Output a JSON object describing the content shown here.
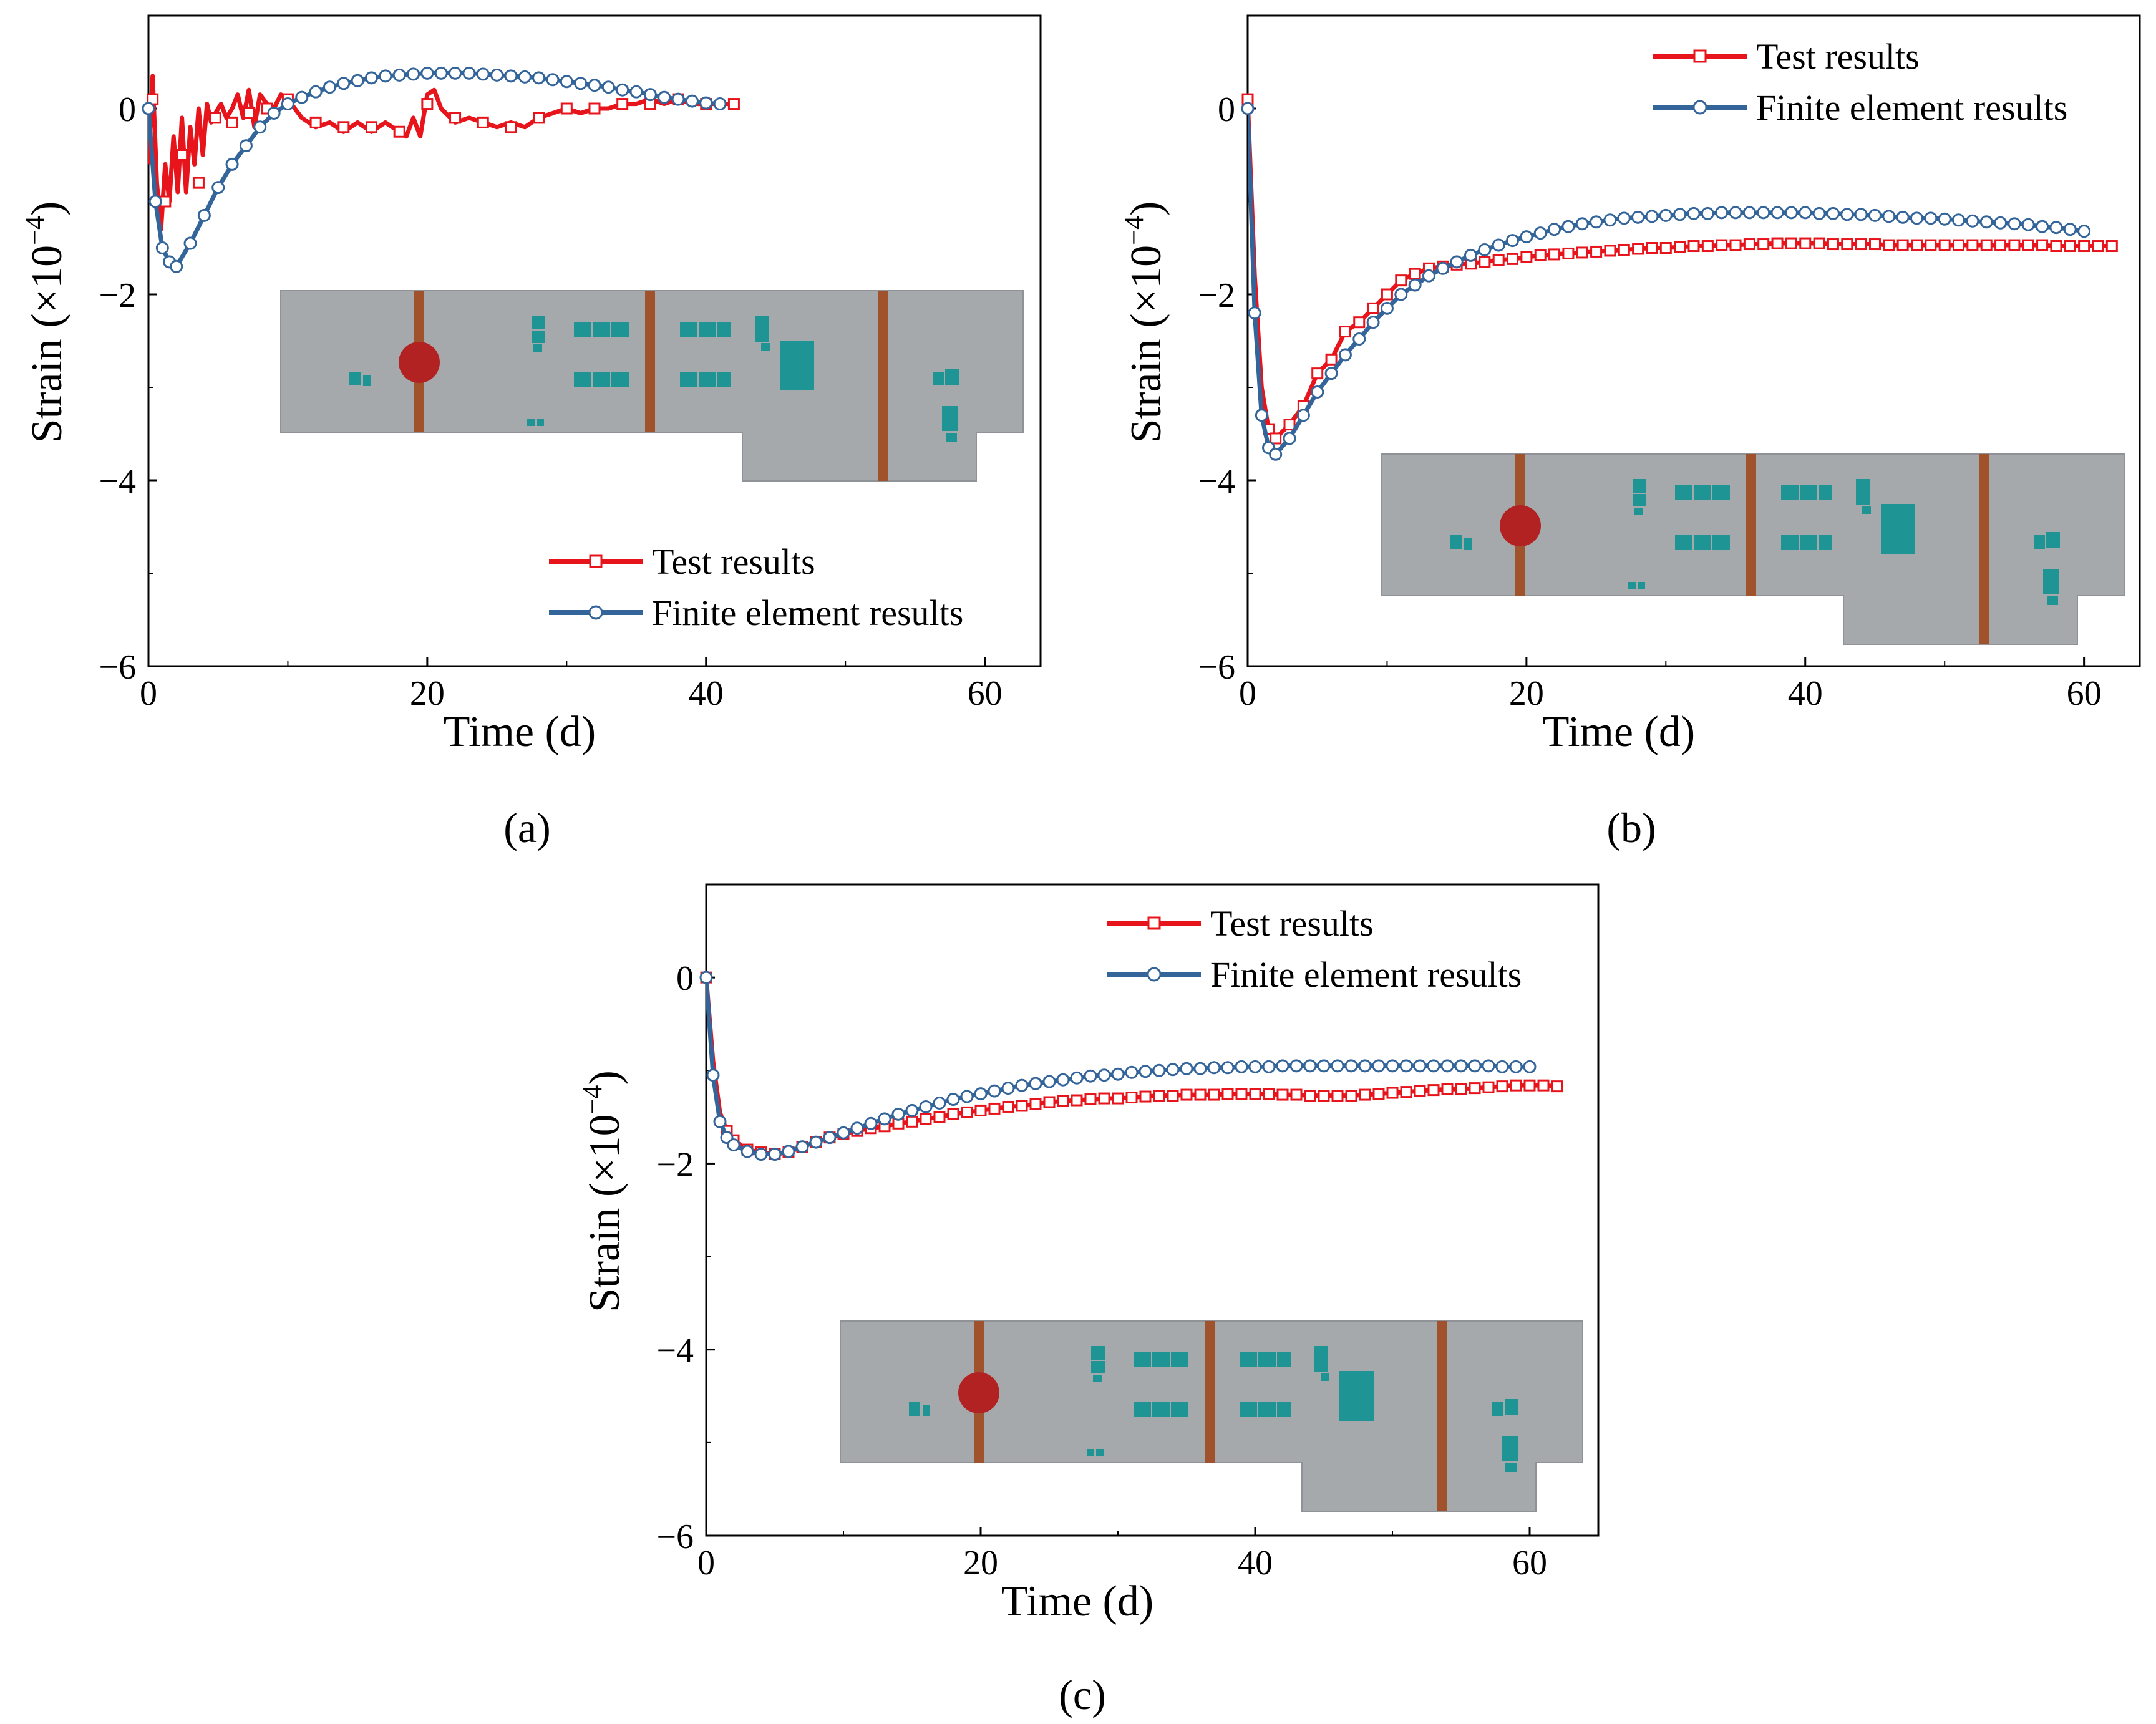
{
  "panel_labels": [
    "(a)",
    "(b)",
    "(c)"
  ],
  "colors": {
    "test": "#e8141c",
    "fe": "#33649a",
    "slab": "#a6a9ac",
    "rebar": "#a0522d",
    "marker": "#b22222",
    "block": "#1e9494"
  },
  "chart_data": [
    {
      "type": "line",
      "panel": "(a)",
      "xlabel": "Time (d)",
      "ylabel": "Strain (×10",
      "ylabel_exp": "−4",
      "ylabel_close": ")",
      "xlim": [
        0,
        64
      ],
      "ylim": [
        -6,
        1
      ],
      "xticks": [
        0,
        20,
        40,
        60
      ],
      "xtick_labels": [
        "0",
        "20",
        "40",
        "60"
      ],
      "yticks": [
        0,
        -2,
        -4,
        -6
      ],
      "ytick_labels": [
        "0",
        "−2",
        "−4",
        "−6"
      ],
      "legend_position": "bottom-right",
      "inset_position": "middle-right",
      "series": [
        {
          "name": "Test results",
          "marker": "square",
          "x": [
            0,
            0.3,
            0.6,
            0.9,
            1.2,
            1.5,
            1.8,
            2.1,
            2.4,
            2.7,
            3.0,
            3.3,
            3.6,
            3.9,
            4.2,
            4.5,
            4.8,
            5.2,
            5.6,
            6.0,
            6.4,
            6.8,
            7.2,
            7.6,
            8.0,
            8.5,
            9,
            9.5,
            10,
            11,
            12,
            13,
            14,
            15,
            16,
            17,
            18,
            18.5,
            19,
            19.5,
            20,
            20.5,
            21,
            22,
            23,
            24,
            25,
            26,
            27,
            28,
            29,
            30,
            31,
            32,
            33,
            34,
            35,
            36,
            37,
            38,
            39,
            40,
            41,
            42
          ],
          "y": [
            -0.6,
            0.35,
            -0.8,
            -1.3,
            -0.6,
            -1.0,
            -0.3,
            -0.9,
            -0.1,
            -0.9,
            -0.2,
            -0.6,
            0.0,
            -0.5,
            0.05,
            -0.15,
            -0.05,
            0.05,
            -0.1,
            -0.0,
            0.15,
            -0.1,
            0.2,
            -0.2,
            0.15,
            0.05,
            0.0,
            0.15,
            0.1,
            -0.1,
            -0.2,
            -0.15,
            -0.25,
            -0.15,
            -0.25,
            -0.15,
            -0.25,
            -0.3,
            -0.1,
            -0.3,
            0.15,
            0.2,
            0.0,
            -0.15,
            -0.1,
            -0.15,
            -0.2,
            -0.15,
            -0.2,
            -0.1,
            -0.05,
            0.0,
            -0.05,
            0.0,
            0.0,
            0.05,
            0.05,
            0.1,
            0.05,
            0.1,
            0.05,
            0.05,
            0.05,
            0.05
          ],
          "marker_x": [
            0.3,
            1.2,
            2.4,
            3.6,
            4.8,
            6.0,
            7.2,
            8.5,
            10,
            12,
            14,
            16,
            18,
            20,
            22,
            24,
            26,
            28,
            30,
            32,
            34,
            36,
            38,
            40,
            42
          ],
          "marker_y": [
            0.1,
            -1.0,
            -0.5,
            -0.8,
            -0.1,
            -0.15,
            -0.05,
            0.0,
            0.1,
            -0.15,
            -0.2,
            -0.2,
            -0.25,
            0.05,
            -0.1,
            -0.15,
            -0.2,
            -0.1,
            0.0,
            0.0,
            0.05,
            0.05,
            0.1,
            0.05,
            0.05
          ]
        },
        {
          "name": "Finite element results",
          "marker": "circle",
          "x": [
            0,
            0.5,
            1,
            1.5,
            2,
            3,
            4,
            5,
            6,
            7,
            8,
            9,
            10,
            11,
            12,
            13,
            14,
            15,
            16,
            17,
            18,
            19,
            20,
            21,
            22,
            23,
            24,
            25,
            26,
            27,
            28,
            29,
            30,
            31,
            32,
            33,
            34,
            35,
            36,
            37,
            38,
            39,
            40,
            41
          ],
          "y": [
            0,
            -1.0,
            -1.5,
            -1.65,
            -1.7,
            -1.45,
            -1.15,
            -0.85,
            -0.6,
            -0.4,
            -0.2,
            -0.05,
            0.05,
            0.12,
            0.18,
            0.23,
            0.27,
            0.3,
            0.33,
            0.35,
            0.36,
            0.37,
            0.38,
            0.38,
            0.38,
            0.38,
            0.37,
            0.36,
            0.35,
            0.34,
            0.33,
            0.31,
            0.29,
            0.27,
            0.25,
            0.23,
            0.2,
            0.18,
            0.15,
            0.12,
            0.1,
            0.08,
            0.06,
            0.05
          ]
        }
      ]
    },
    {
      "type": "line",
      "panel": "(b)",
      "xlabel": "Time (d)",
      "ylabel": "Strain (×10",
      "ylabel_exp": "−4",
      "ylabel_close": ")",
      "xlim": [
        0,
        64
      ],
      "ylim": [
        -6,
        1
      ],
      "xticks": [
        0,
        20,
        40,
        60
      ],
      "xtick_labels": [
        "0",
        "20",
        "40",
        "60"
      ],
      "yticks": [
        0,
        -2,
        -4,
        -6
      ],
      "ytick_labels": [
        "0",
        "−2",
        "−4",
        "−6"
      ],
      "legend_position": "top-right",
      "inset_position": "bottom-right",
      "series": [
        {
          "name": "Test results",
          "marker": "square",
          "x": [
            0,
            0.5,
            1,
            1.5,
            2,
            3,
            4,
            5,
            6,
            7,
            8,
            9,
            10,
            11,
            12,
            13,
            14,
            15,
            16,
            17,
            18,
            19,
            20,
            21,
            22,
            23,
            24,
            25,
            26,
            27,
            28,
            29,
            30,
            31,
            32,
            33,
            34,
            35,
            36,
            37,
            38,
            39,
            40,
            41,
            42,
            43,
            44,
            45,
            46,
            47,
            48,
            49,
            50,
            51,
            52,
            53,
            54,
            55,
            56,
            57,
            58,
            59,
            60,
            61,
            62
          ],
          "y": [
            0.1,
            -1.8,
            -3.0,
            -3.45,
            -3.55,
            -3.4,
            -3.2,
            -2.85,
            -2.7,
            -2.4,
            -2.3,
            -2.15,
            -2.0,
            -1.85,
            -1.78,
            -1.72,
            -1.7,
            -1.68,
            -1.67,
            -1.65,
            -1.63,
            -1.62,
            -1.6,
            -1.58,
            -1.57,
            -1.56,
            -1.55,
            -1.54,
            -1.53,
            -1.52,
            -1.51,
            -1.5,
            -1.5,
            -1.49,
            -1.48,
            -1.48,
            -1.47,
            -1.47,
            -1.46,
            -1.46,
            -1.45,
            -1.45,
            -1.45,
            -1.45,
            -1.46,
            -1.46,
            -1.46,
            -1.46,
            -1.47,
            -1.47,
            -1.47,
            -1.47,
            -1.47,
            -1.47,
            -1.47,
            -1.47,
            -1.47,
            -1.47,
            -1.47,
            -1.47,
            -1.48,
            -1.48,
            -1.48,
            -1.48,
            -1.48
          ]
        },
        {
          "name": "Finite element results",
          "marker": "circle",
          "x": [
            0,
            0.5,
            1,
            1.5,
            2,
            3,
            4,
            5,
            6,
            7,
            8,
            9,
            10,
            11,
            12,
            13,
            14,
            15,
            16,
            17,
            18,
            19,
            20,
            21,
            22,
            23,
            24,
            25,
            26,
            27,
            28,
            29,
            30,
            31,
            32,
            33,
            34,
            35,
            36,
            37,
            38,
            39,
            40,
            41,
            42,
            43,
            44,
            45,
            46,
            47,
            48,
            49,
            50,
            51,
            52,
            53,
            54,
            55,
            56,
            57,
            58,
            59,
            60
          ],
          "y": [
            0,
            -2.2,
            -3.3,
            -3.65,
            -3.72,
            -3.55,
            -3.3,
            -3.05,
            -2.85,
            -2.65,
            -2.48,
            -2.3,
            -2.15,
            -2.0,
            -1.9,
            -1.8,
            -1.72,
            -1.65,
            -1.58,
            -1.52,
            -1.47,
            -1.42,
            -1.38,
            -1.34,
            -1.3,
            -1.27,
            -1.24,
            -1.22,
            -1.2,
            -1.18,
            -1.17,
            -1.16,
            -1.15,
            -1.14,
            -1.13,
            -1.13,
            -1.12,
            -1.12,
            -1.12,
            -1.12,
            -1.12,
            -1.12,
            -1.12,
            -1.13,
            -1.13,
            -1.14,
            -1.14,
            -1.15,
            -1.16,
            -1.17,
            -1.18,
            -1.18,
            -1.19,
            -1.2,
            -1.21,
            -1.22,
            -1.23,
            -1.24,
            -1.25,
            -1.27,
            -1.28,
            -1.3,
            -1.32
          ]
        }
      ]
    },
    {
      "type": "line",
      "panel": "(c)",
      "xlabel": "Time (d)",
      "ylabel": "Strain (×10",
      "ylabel_exp": "−4",
      "ylabel_close": ")",
      "xlim": [
        0,
        65
      ],
      "ylim": [
        -6,
        1
      ],
      "xticks": [
        0,
        20,
        40,
        60
      ],
      "xtick_labels": [
        "0",
        "20",
        "40",
        "60"
      ],
      "yticks": [
        0,
        -2,
        -4,
        -6
      ],
      "ytick_labels": [
        "0",
        "−2",
        "−4",
        "−6"
      ],
      "legend_position": "top-right",
      "inset_position": "bottom-right",
      "series": [
        {
          "name": "Test results",
          "marker": "square",
          "x": [
            0,
            0.5,
            1,
            1.5,
            2,
            3,
            4,
            5,
            6,
            7,
            8,
            9,
            10,
            11,
            12,
            13,
            14,
            15,
            16,
            17,
            18,
            19,
            20,
            21,
            22,
            23,
            24,
            25,
            26,
            27,
            28,
            29,
            30,
            31,
            32,
            33,
            34,
            35,
            36,
            37,
            38,
            39,
            40,
            41,
            42,
            43,
            44,
            45,
            46,
            47,
            48,
            49,
            50,
            51,
            52,
            53,
            54,
            55,
            56,
            57,
            58,
            59,
            60,
            61,
            62
          ],
          "y": [
            0,
            -0.9,
            -1.45,
            -1.65,
            -1.75,
            -1.85,
            -1.88,
            -1.9,
            -1.88,
            -1.82,
            -1.77,
            -1.72,
            -1.68,
            -1.65,
            -1.62,
            -1.6,
            -1.57,
            -1.55,
            -1.52,
            -1.5,
            -1.47,
            -1.45,
            -1.43,
            -1.41,
            -1.39,
            -1.38,
            -1.36,
            -1.34,
            -1.33,
            -1.32,
            -1.31,
            -1.3,
            -1.3,
            -1.29,
            -1.28,
            -1.27,
            -1.27,
            -1.26,
            -1.26,
            -1.26,
            -1.25,
            -1.25,
            -1.25,
            -1.25,
            -1.26,
            -1.26,
            -1.27,
            -1.27,
            -1.27,
            -1.27,
            -1.26,
            -1.25,
            -1.24,
            -1.23,
            -1.22,
            -1.21,
            -1.2,
            -1.2,
            -1.19,
            -1.18,
            -1.17,
            -1.16,
            -1.16,
            -1.16,
            -1.17
          ]
        },
        {
          "name": "Finite element results",
          "marker": "circle",
          "x": [
            0,
            0.5,
            1,
            1.5,
            2,
            3,
            4,
            5,
            6,
            7,
            8,
            9,
            10,
            11,
            12,
            13,
            14,
            15,
            16,
            17,
            18,
            19,
            20,
            21,
            22,
            23,
            24,
            25,
            26,
            27,
            28,
            29,
            30,
            31,
            32,
            33,
            34,
            35,
            36,
            37,
            38,
            39,
            40,
            41,
            42,
            43,
            44,
            45,
            46,
            47,
            48,
            49,
            50,
            51,
            52,
            53,
            54,
            55,
            56,
            57,
            58,
            59,
            60
          ],
          "y": [
            0,
            -1.05,
            -1.55,
            -1.72,
            -1.8,
            -1.87,
            -1.9,
            -1.9,
            -1.87,
            -1.82,
            -1.77,
            -1.72,
            -1.67,
            -1.62,
            -1.57,
            -1.52,
            -1.47,
            -1.43,
            -1.39,
            -1.35,
            -1.31,
            -1.28,
            -1.25,
            -1.22,
            -1.19,
            -1.16,
            -1.14,
            -1.12,
            -1.1,
            -1.08,
            -1.06,
            -1.05,
            -1.04,
            -1.02,
            -1.01,
            -1.0,
            -0.99,
            -0.98,
            -0.98,
            -0.97,
            -0.97,
            -0.96,
            -0.96,
            -0.96,
            -0.95,
            -0.95,
            -0.95,
            -0.95,
            -0.95,
            -0.95,
            -0.95,
            -0.95,
            -0.95,
            -0.95,
            -0.95,
            -0.95,
            -0.95,
            -0.95,
            -0.95,
            -0.95,
            -0.96,
            -0.96,
            -0.96
          ]
        }
      ]
    }
  ]
}
